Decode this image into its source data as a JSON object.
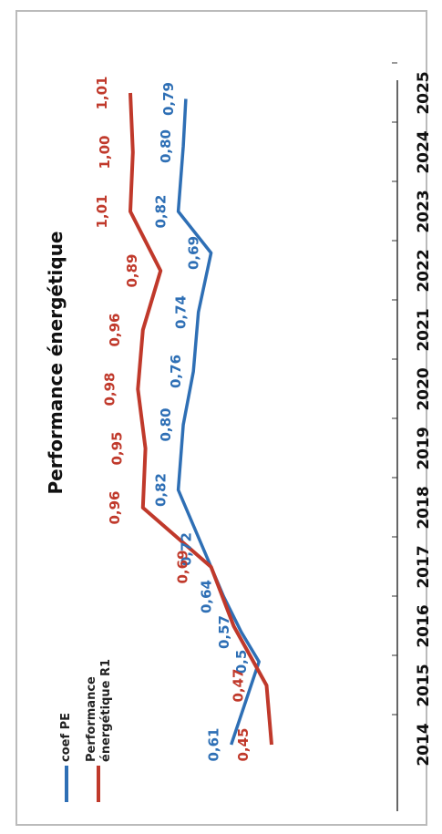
{
  "chart_data": {
    "type": "line",
    "title": "Performance énergétique",
    "categories": [
      "2014",
      "2015",
      "2016",
      "2017",
      "2018",
      "2019",
      "2020",
      "2021",
      "2022",
      "2023",
      "2024",
      "2025"
    ],
    "series": [
      {
        "name": "coef PE",
        "color": "#2e6fb5",
        "values": [
          0.61,
          0.5,
          0.57,
          0.64,
          0.72,
          0.82,
          0.8,
          0.76,
          0.74,
          0.69,
          0.82,
          0.8,
          0.79
        ],
        "x": [
          2014,
          2015.4,
          2015.9,
          2016.5,
          2017.3,
          2018.3,
          2019.4,
          2020.3,
          2021.3,
          2022.3,
          2023,
          2024.1,
          2024.9
        ],
        "labels": [
          "0,61",
          "0,5",
          "0,57",
          "0,64",
          "0,72",
          "0,82",
          "0,80",
          "0,76",
          "0,74",
          "0,69",
          "0,82",
          "0,80",
          "0,79"
        ]
      },
      {
        "name": "Performance énergétique R1",
        "color": "#c0392b",
        "values": [
          0.45,
          0.47,
          0.6,
          0.69,
          0.96,
          0.95,
          0.98,
          0.96,
          0.89,
          1.01,
          1.0,
          1.01
        ],
        "x": [
          2014,
          2015,
          2016,
          2017,
          2018,
          2019,
          2020,
          2021,
          2022,
          2023,
          2024,
          2025
        ],
        "labels": [
          "0,45",
          "0,47",
          "",
          "0,69",
          "0,96",
          "0,95",
          "0,98",
          "0,96",
          "0,89",
          "1,01",
          "1,00",
          "1,01"
        ]
      }
    ],
    "xlim": [
      2013.5,
      2025.5
    ],
    "ylim": [
      0.35,
      1.15
    ],
    "grid": false,
    "legend_position": "top-left",
    "rotation": "90-ccw"
  }
}
